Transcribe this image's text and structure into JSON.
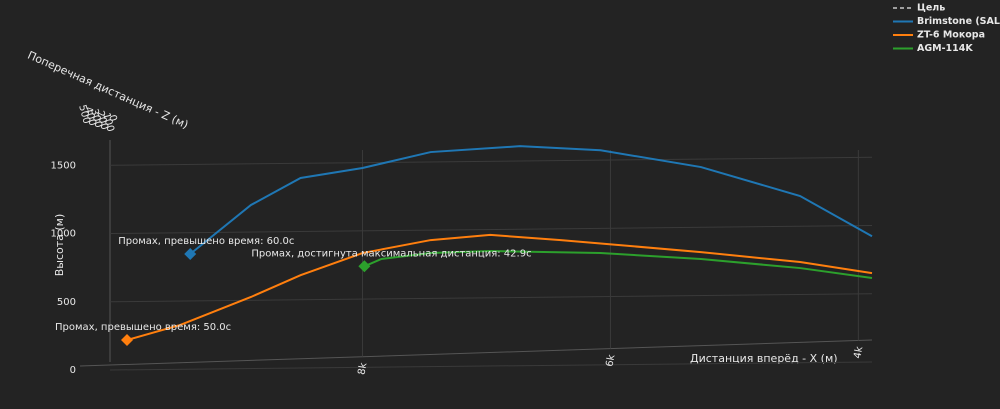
{
  "chart_data": {
    "type": "line3d",
    "x_label": "Дистанция вперёд - X (м)",
    "y_label": "Высота (м)",
    "z_label": "Поперечная дистанция - Z (м)",
    "xlim": [
      9900,
      3890
    ],
    "xticks": [
      {
        "value": 8000,
        "label": "8k"
      },
      {
        "value": 6000,
        "label": "6k"
      },
      {
        "value": 4000,
        "label": "4k"
      }
    ],
    "ylim": [
      0,
      1700
    ],
    "yticks": [
      0,
      500,
      1000,
      1500
    ],
    "zticks": [
      500,
      400,
      300,
      200,
      100,
      0
    ],
    "grid": true,
    "legend": "top-right",
    "series": [
      {
        "name": "Цель",
        "color": "#9e9e9e",
        "dash": true
      },
      {
        "name": "Brimstone (SAL)",
        "color": "#1f77b4",
        "x": [
          9390,
          8900,
          8500,
          8000,
          7450,
          6730,
          6080,
          5270,
          4470,
          3890
        ],
        "values": [
          850,
          1209,
          1407,
          1480,
          1597,
          1640,
          1610,
          1487,
          1275,
          980
        ],
        "annotation": "Промах, превышено время: 60.0с"
      },
      {
        "name": "ZT-6 Мокора",
        "color": "#ff7f0e",
        "x": [
          9900,
          9470,
          8900,
          8500,
          8000,
          7450,
          6970,
          6400,
          5270,
          4470,
          3890
        ],
        "values": [
          220,
          330,
          535,
          695,
          857,
          952,
          990,
          952,
          864,
          791,
          710
        ],
        "annotation": "Промах, превышено время: 50.0с"
      },
      {
        "name": "AGM-114K",
        "color": "#2ca02c",
        "x": [
          7985,
          7850,
          7450,
          6970,
          6080,
          5270,
          4470,
          3890
        ],
        "values": [
          760,
          813,
          857,
          872,
          857,
          813,
          747,
          674
        ],
        "annotation": "Промах, достигнута максимальная дистанция: 42.9с"
      }
    ]
  }
}
